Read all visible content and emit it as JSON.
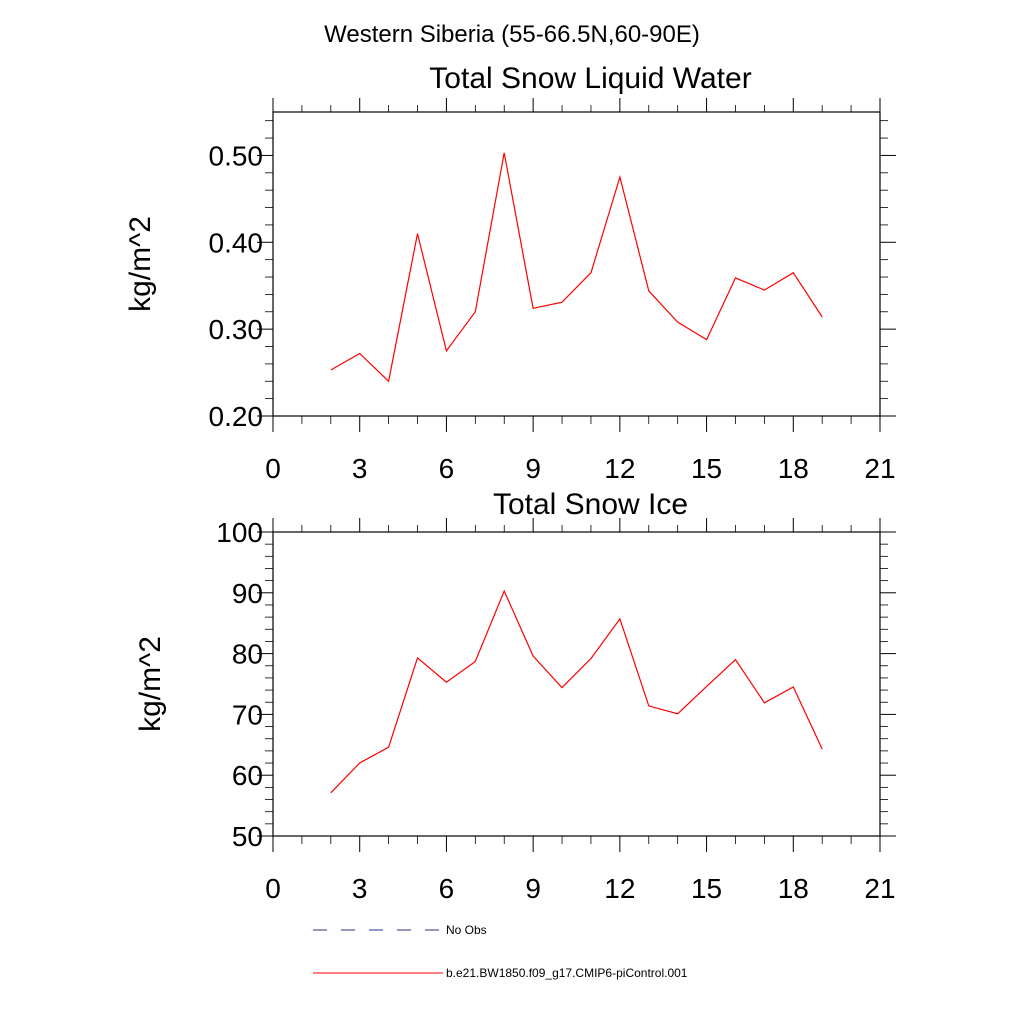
{
  "figure_title": "Western Siberia (55-66.5N,60-90E)",
  "colors": {
    "model": "#ff0000",
    "obs": "#2b2f8f",
    "axis": "#000000"
  },
  "legend": {
    "obs_label": "No Obs",
    "model_label": "b.e21.BW1850.f09_g17.CMIP6-piControl.001"
  },
  "chart_data": [
    {
      "type": "line",
      "title": "Total Snow Liquid Water",
      "xlabel": "",
      "ylabel": "kg/m^2",
      "xlim": [
        0,
        21
      ],
      "ylim": [
        0.2,
        0.55
      ],
      "x_ticks": [
        0,
        3,
        6,
        9,
        12,
        15,
        18,
        21
      ],
      "x_tick_labels": [
        "0",
        "3",
        "6",
        "9",
        "12",
        "15",
        "18",
        "21"
      ],
      "y_ticks": [
        0.2,
        0.3,
        0.4,
        0.5
      ],
      "y_tick_labels": [
        "0.20",
        "0.30",
        "0.40",
        "0.50"
      ],
      "grid": false,
      "series": [
        {
          "name": "b.e21.BW1850.f09_g17.CMIP6-piControl.001",
          "x": [
            2,
            3,
            4,
            5,
            6,
            7,
            8,
            9,
            10,
            11,
            12,
            13,
            14,
            15,
            16,
            17,
            18,
            19
          ],
          "y": [
            0.253,
            0.272,
            0.24,
            0.41,
            0.275,
            0.32,
            0.503,
            0.324,
            0.331,
            0.365,
            0.475,
            0.344,
            0.308,
            0.288,
            0.359,
            0.345,
            0.365,
            0.314
          ]
        }
      ]
    },
    {
      "type": "line",
      "title": "Total Snow Ice",
      "xlabel": "",
      "ylabel": "kg/m^2",
      "xlim": [
        0,
        21
      ],
      "ylim": [
        50,
        100
      ],
      "x_ticks": [
        0,
        3,
        6,
        9,
        12,
        15,
        18,
        21
      ],
      "x_tick_labels": [
        "0",
        "3",
        "6",
        "9",
        "12",
        "15",
        "18",
        "21"
      ],
      "y_ticks": [
        50,
        60,
        70,
        80,
        90,
        100
      ],
      "y_tick_labels": [
        "50",
        "60",
        "70",
        "80",
        "90",
        "100"
      ],
      "grid": false,
      "series": [
        {
          "name": "b.e21.BW1850.f09_g17.CMIP6-piControl.001",
          "x": [
            2,
            3,
            4,
            5,
            6,
            7,
            8,
            9,
            10,
            11,
            12,
            13,
            14,
            15,
            16,
            17,
            18,
            19
          ],
          "y": [
            57.1,
            62.0,
            64.6,
            79.3,
            75.3,
            78.7,
            90.3,
            79.6,
            74.4,
            79.2,
            85.7,
            71.4,
            70.1,
            74.6,
            79.0,
            71.9,
            74.5,
            64.3
          ]
        }
      ]
    }
  ]
}
